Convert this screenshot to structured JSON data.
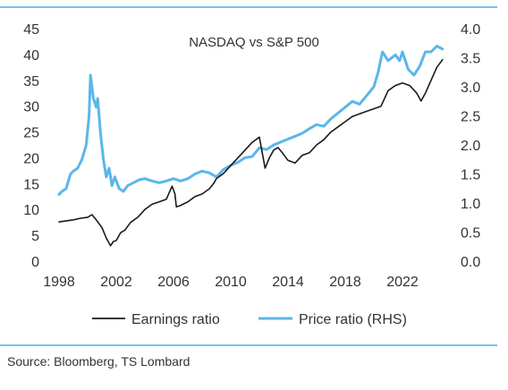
{
  "source": "Source: Bloomberg, TS Lombard",
  "colors": {
    "earnings": "#1a1a1a",
    "price": "#5bb6ea",
    "rule": "#47b0e6",
    "text": "#333333"
  },
  "chart_data": {
    "type": "line",
    "title": "NASDAQ vs S&P 500",
    "xlabel": "",
    "ylabel": "",
    "x_ticks": [
      "1998",
      "2002",
      "2006",
      "2010",
      "2014",
      "2018",
      "2022"
    ],
    "xlim": [
      1998,
      2025
    ],
    "y_left": {
      "ticks": [
        "0",
        "5",
        "10",
        "15",
        "20",
        "25",
        "30",
        "35",
        "40",
        "45"
      ],
      "ylim": [
        0,
        45
      ]
    },
    "y_right": {
      "ticks": [
        "0.0",
        "0.5",
        "1.0",
        "1.5",
        "2.0",
        "2.5",
        "3.0",
        "3.5",
        "4.0"
      ],
      "ylim": [
        0,
        4
      ]
    },
    "grid": false,
    "legend": "bottom",
    "series": [
      {
        "name": "Earnings ratio",
        "axis": "left",
        "points": [
          [
            1998.0,
            7.6
          ],
          [
            1998.5,
            7.8
          ],
          [
            1999.0,
            8.0
          ],
          [
            1999.5,
            8.3
          ],
          [
            2000.0,
            8.5
          ],
          [
            2000.3,
            9.0
          ],
          [
            2000.6,
            8.0
          ],
          [
            2001.0,
            6.5
          ],
          [
            2001.3,
            4.5
          ],
          [
            2001.6,
            3.0
          ],
          [
            2001.8,
            3.8
          ],
          [
            2002.0,
            4.0
          ],
          [
            2002.3,
            5.5
          ],
          [
            2002.6,
            6.0
          ],
          [
            2003.0,
            7.5
          ],
          [
            2003.5,
            8.5
          ],
          [
            2004.0,
            10.0
          ],
          [
            2004.5,
            11.0
          ],
          [
            2005.0,
            11.5
          ],
          [
            2005.5,
            12.0
          ],
          [
            2005.9,
            14.5
          ],
          [
            2006.1,
            13.0
          ],
          [
            2006.2,
            10.5
          ],
          [
            2006.5,
            10.8
          ],
          [
            2007.0,
            11.5
          ],
          [
            2007.5,
            12.5
          ],
          [
            2008.0,
            13.0
          ],
          [
            2008.5,
            14.0
          ],
          [
            2008.8,
            15.0
          ],
          [
            2009.0,
            16.0
          ],
          [
            2009.5,
            17.0
          ],
          [
            2010.0,
            18.5
          ],
          [
            2010.5,
            20.0
          ],
          [
            2011.0,
            21.5
          ],
          [
            2011.5,
            23.0
          ],
          [
            2012.0,
            24.0
          ],
          [
            2012.2,
            21.0
          ],
          [
            2012.4,
            18.0
          ],
          [
            2012.7,
            20.0
          ],
          [
            2013.0,
            21.5
          ],
          [
            2013.3,
            22.0
          ],
          [
            2013.6,
            21.0
          ],
          [
            2014.0,
            19.5
          ],
          [
            2014.5,
            19.0
          ],
          [
            2015.0,
            20.5
          ],
          [
            2015.5,
            21.0
          ],
          [
            2016.0,
            22.5
          ],
          [
            2016.5,
            23.5
          ],
          [
            2017.0,
            25.0
          ],
          [
            2017.5,
            26.0
          ],
          [
            2018.0,
            27.0
          ],
          [
            2018.5,
            28.0
          ],
          [
            2019.0,
            28.5
          ],
          [
            2019.5,
            29.0
          ],
          [
            2020.0,
            29.5
          ],
          [
            2020.5,
            30.0
          ],
          [
            2021.0,
            33.0
          ],
          [
            2021.5,
            34.0
          ],
          [
            2022.0,
            34.5
          ],
          [
            2022.5,
            34.0
          ],
          [
            2023.0,
            32.5
          ],
          [
            2023.3,
            31.0
          ],
          [
            2023.6,
            32.5
          ],
          [
            2024.0,
            35.0
          ],
          [
            2024.4,
            37.5
          ],
          [
            2024.8,
            39.0
          ]
        ]
      },
      {
        "name": "Price ratio (RHS)",
        "axis": "right",
        "points": [
          [
            1998.0,
            1.15
          ],
          [
            1998.2,
            1.2
          ],
          [
            1998.5,
            1.25
          ],
          [
            1998.8,
            1.5
          ],
          [
            1999.0,
            1.55
          ],
          [
            1999.3,
            1.6
          ],
          [
            1999.6,
            1.75
          ],
          [
            1999.9,
            2.0
          ],
          [
            2000.1,
            2.5
          ],
          [
            2000.2,
            3.2
          ],
          [
            2000.4,
            2.8
          ],
          [
            2000.6,
            2.65
          ],
          [
            2000.7,
            2.8
          ],
          [
            2000.9,
            2.2
          ],
          [
            2001.1,
            1.75
          ],
          [
            2001.3,
            1.45
          ],
          [
            2001.5,
            1.6
          ],
          [
            2001.7,
            1.3
          ],
          [
            2001.9,
            1.45
          ],
          [
            2002.2,
            1.25
          ],
          [
            2002.5,
            1.2
          ],
          [
            2002.8,
            1.3
          ],
          [
            2003.2,
            1.35
          ],
          [
            2003.6,
            1.4
          ],
          [
            2004.0,
            1.42
          ],
          [
            2004.5,
            1.38
          ],
          [
            2005.0,
            1.35
          ],
          [
            2005.5,
            1.38
          ],
          [
            2006.0,
            1.42
          ],
          [
            2006.5,
            1.38
          ],
          [
            2007.0,
            1.42
          ],
          [
            2007.5,
            1.5
          ],
          [
            2008.0,
            1.55
          ],
          [
            2008.5,
            1.52
          ],
          [
            2009.0,
            1.45
          ],
          [
            2009.5,
            1.58
          ],
          [
            2010.0,
            1.65
          ],
          [
            2010.5,
            1.7
          ],
          [
            2011.0,
            1.78
          ],
          [
            2011.5,
            1.8
          ],
          [
            2012.0,
            1.95
          ],
          [
            2012.5,
            1.92
          ],
          [
            2013.0,
            2.0
          ],
          [
            2013.5,
            2.05
          ],
          [
            2014.0,
            2.1
          ],
          [
            2014.5,
            2.15
          ],
          [
            2015.0,
            2.2
          ],
          [
            2015.5,
            2.28
          ],
          [
            2016.0,
            2.35
          ],
          [
            2016.5,
            2.32
          ],
          [
            2017.0,
            2.45
          ],
          [
            2017.5,
            2.55
          ],
          [
            2018.0,
            2.65
          ],
          [
            2018.5,
            2.75
          ],
          [
            2019.0,
            2.7
          ],
          [
            2019.5,
            2.85
          ],
          [
            2020.0,
            3.0
          ],
          [
            2020.3,
            3.25
          ],
          [
            2020.6,
            3.6
          ],
          [
            2021.0,
            3.45
          ],
          [
            2021.5,
            3.55
          ],
          [
            2021.8,
            3.45
          ],
          [
            2022.0,
            3.6
          ],
          [
            2022.4,
            3.3
          ],
          [
            2022.8,
            3.2
          ],
          [
            2023.2,
            3.35
          ],
          [
            2023.6,
            3.6
          ],
          [
            2024.0,
            3.6
          ],
          [
            2024.4,
            3.7
          ],
          [
            2024.8,
            3.65
          ]
        ]
      }
    ]
  }
}
